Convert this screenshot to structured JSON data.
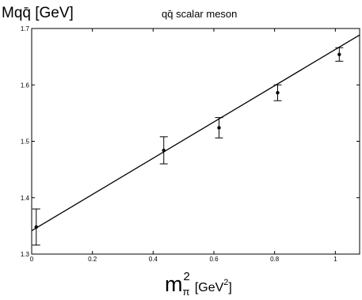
{
  "chart_data": {
    "type": "scatter",
    "title": "qq̄ scalar meson",
    "ylabel": "Mqq̄ [GeV]",
    "xlabel": {
      "base": "m",
      "subscript": "π",
      "superscript": "2",
      "unit": "[GeV",
      "unit_superscript": "2",
      "unit_close": "]"
    },
    "xlim": [
      0,
      1.08
    ],
    "ylim": [
      1.3,
      1.7
    ],
    "xticks": [
      0,
      0.2,
      0.4,
      0.6,
      0.8,
      1
    ],
    "xtick_labels": [
      "0",
      "0.2",
      "0.4",
      "0.6",
      "0.8",
      "1"
    ],
    "yticks": [
      1.3,
      1.4,
      1.5,
      1.6,
      1.7
    ],
    "ytick_labels": [
      "1.3",
      "1.4",
      "1.5",
      "1.6",
      "1.7"
    ],
    "grid": false,
    "series": [
      {
        "points": [
          {
            "x": 0.015,
            "y": 1.348,
            "err": 0.032
          },
          {
            "x": 0.435,
            "y": 1.484,
            "err": 0.024
          },
          {
            "x": 0.617,
            "y": 1.524,
            "err": 0.018
          },
          {
            "x": 0.81,
            "y": 1.586,
            "err": 0.014
          },
          {
            "x": 1.013,
            "y": 1.654,
            "err": 0.012
          }
        ]
      }
    ],
    "fit_line": {
      "x": [
        0,
        1.08
      ],
      "y": [
        1.3415,
        1.6885
      ]
    }
  }
}
